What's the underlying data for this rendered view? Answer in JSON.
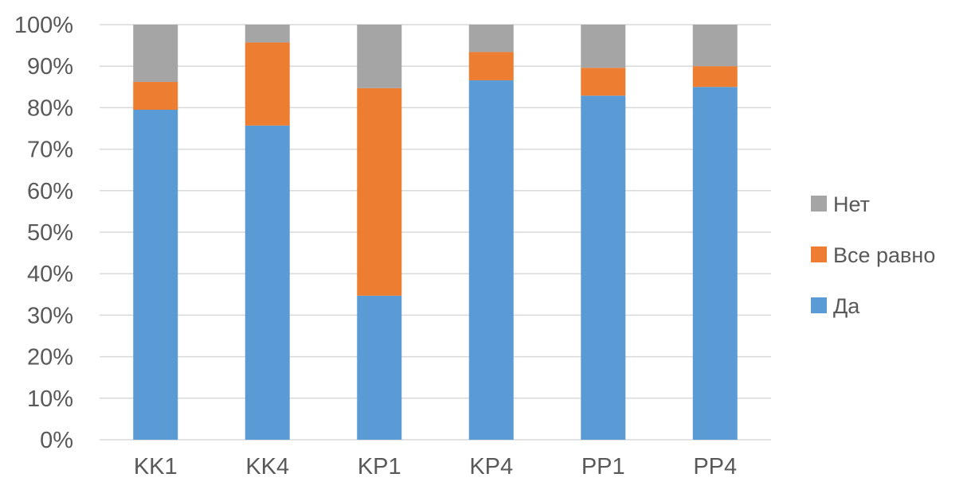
{
  "chart_data": {
    "type": "bar",
    "stacked": true,
    "percent": true,
    "categories": [
      "KK1",
      "KK4",
      "KP1",
      "KP4",
      "PP1",
      "PP4"
    ],
    "series": [
      {
        "name": "Да",
        "color": "#5B9BD5",
        "values": [
          79.5,
          75.7,
          34.7,
          86.6,
          82.9,
          85.0
        ]
      },
      {
        "name": "Все равно",
        "color": "#ED7D31",
        "values": [
          6.7,
          20.0,
          50.0,
          6.8,
          6.7,
          5.0
        ]
      },
      {
        "name": "Нет",
        "color": "#A5A5A5",
        "values": [
          13.8,
          4.3,
          15.3,
          6.6,
          10.4,
          10.0
        ]
      }
    ],
    "ylim": [
      0,
      100
    ],
    "yticks": [
      "0%",
      "10%",
      "20%",
      "30%",
      "40%",
      "50%",
      "60%",
      "70%",
      "80%",
      "90%",
      "100%"
    ],
    "grid": true,
    "gridline_color": "#D9D9D9",
    "legend_position": "right",
    "legend_order": [
      "Нет",
      "Все равно",
      "Да"
    ]
  }
}
